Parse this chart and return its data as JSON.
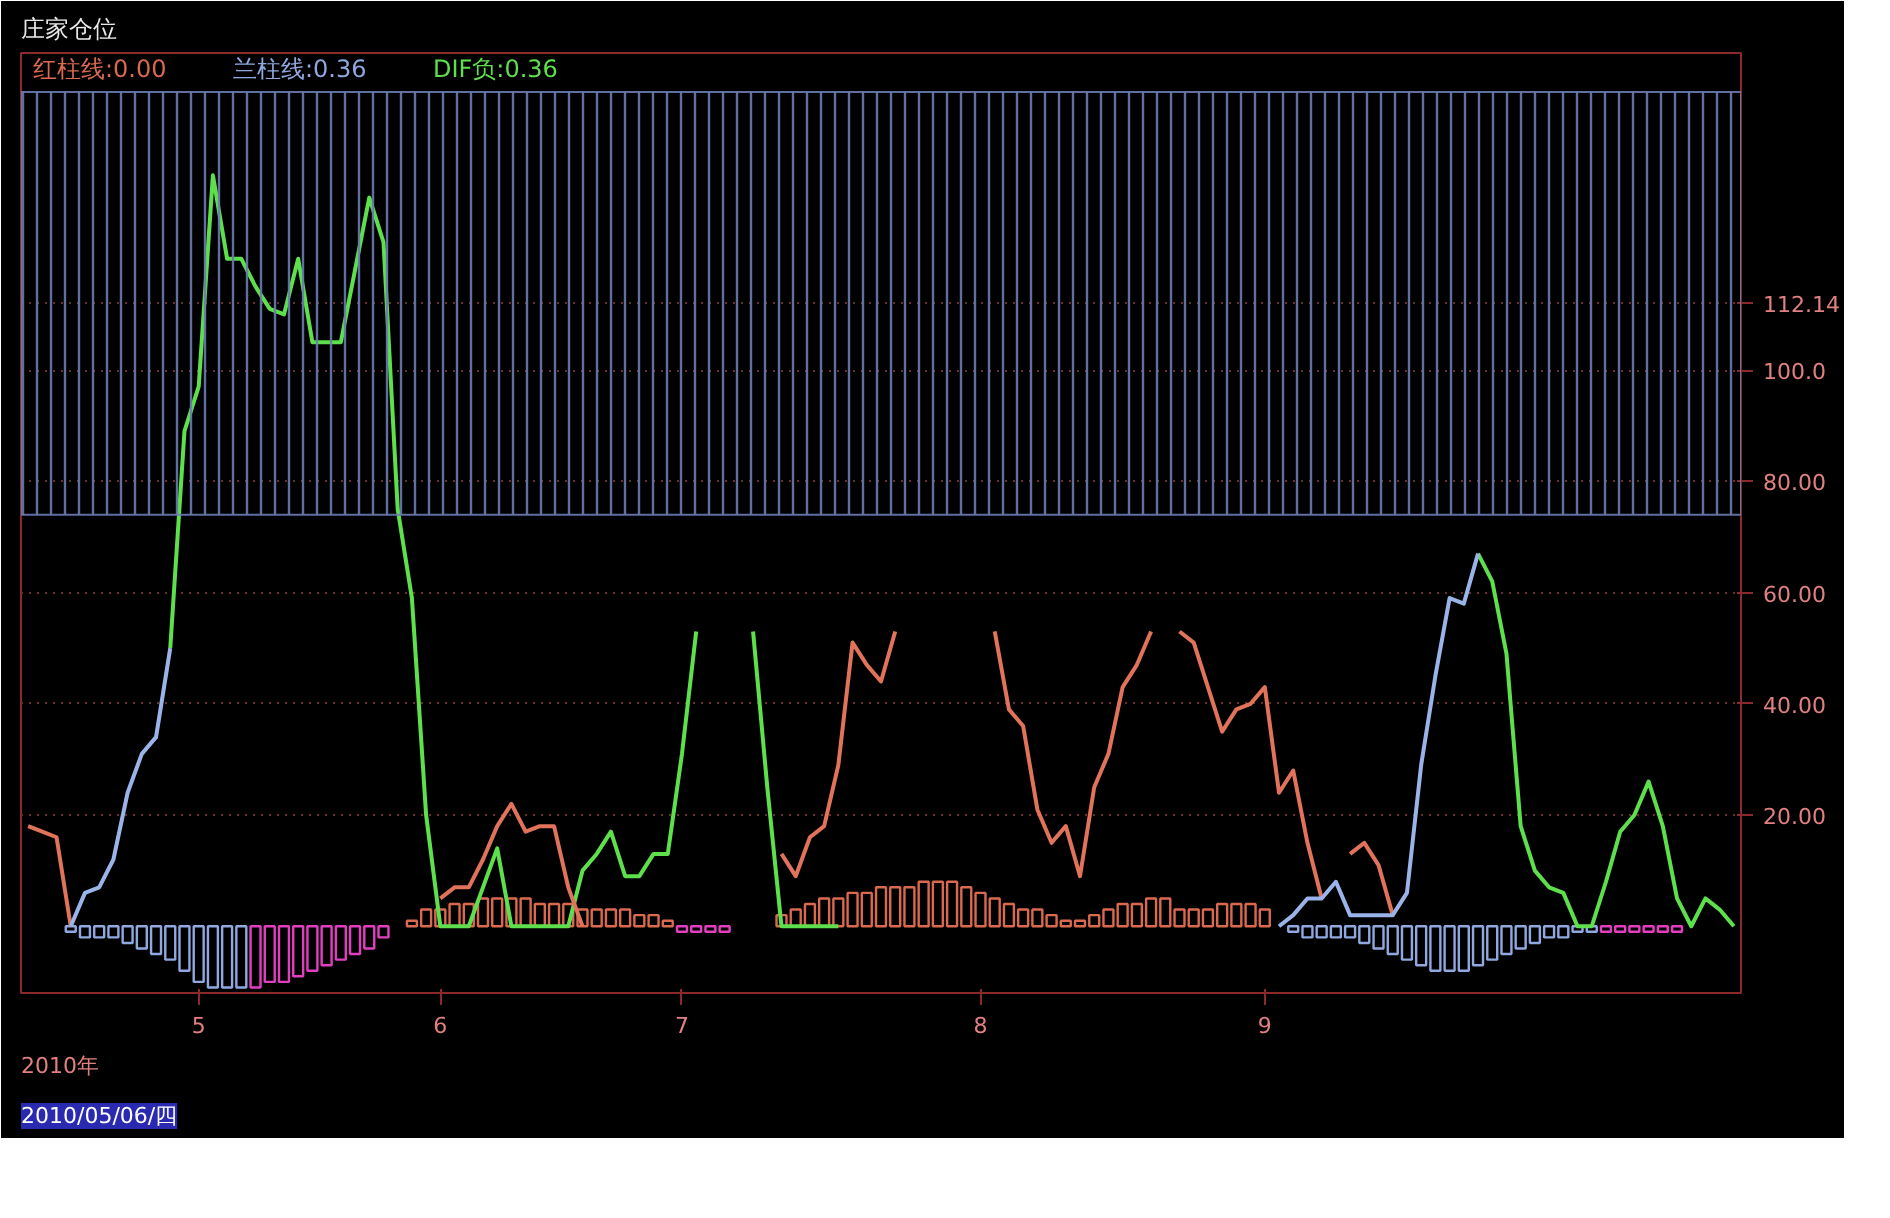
{
  "chart_data": {
    "type": "line",
    "title": "庄家仓位",
    "annotations": [
      "2010年",
      "2010/05/06/四"
    ],
    "categories": [
      null,
      null,
      null,
      null,
      null,
      null,
      null,
      null,
      null,
      null,
      null,
      null,
      "5",
      null,
      null,
      null,
      null,
      null,
      null,
      null,
      null,
      null,
      null,
      null,
      null,
      null,
      null,
      null,
      null,
      "6",
      null,
      null,
      null,
      null,
      null,
      null,
      null,
      null,
      null,
      null,
      null,
      null,
      null,
      null,
      null,
      null,
      "7",
      null,
      null,
      null,
      null,
      null,
      null,
      null,
      null,
      null,
      null,
      null,
      null,
      null,
      null,
      null,
      null,
      null,
      null,
      null,
      null,
      "8",
      null,
      null,
      null,
      null,
      null,
      null,
      null,
      null,
      null,
      null,
      null,
      null,
      null,
      null,
      null,
      null,
      null,
      null,
      null,
      "9",
      null,
      null,
      null,
      null,
      null,
      null,
      null,
      null,
      null,
      null,
      null,
      null,
      null,
      null,
      null,
      null,
      null,
      null,
      null,
      null,
      null,
      null,
      null,
      null,
      null,
      null,
      null,
      null,
      null,
      null,
      null,
      null,
      null
    ],
    "ylim": [
      -12,
      157
    ],
    "yticks": [
      {
        "value": 20,
        "label": "20.00"
      },
      {
        "value": 40,
        "label": "40.00"
      },
      {
        "value": 60,
        "label": "60.00"
      },
      {
        "value": 80,
        "label": "80.00"
      },
      {
        "value": 100,
        "label": "100.0"
      },
      {
        "value": 112.14,
        "label": "112.14"
      }
    ],
    "grid": "y",
    "legend": "top left",
    "bands": [
      {
        "axis": "y",
        "from": 74,
        "to": 150,
        "color": "#6a7bb0"
      }
    ],
    "series": [
      {
        "type": "bar",
        "name": "红柱线:0.00",
        "color": "#d9694f",
        "values": [
          null,
          null,
          null,
          null,
          null,
          null,
          null,
          null,
          null,
          null,
          null,
          null,
          null,
          null,
          null,
          null,
          null,
          null,
          null,
          null,
          null,
          null,
          null,
          null,
          null,
          null,
          null,
          1,
          3,
          3,
          4,
          4,
          5,
          5,
          5,
          5,
          4,
          4,
          4,
          3,
          3,
          3,
          3,
          2,
          2,
          1,
          null,
          null,
          null,
          null,
          null,
          null,
          null,
          2,
          3,
          4,
          5,
          5,
          6,
          6,
          7,
          7,
          7,
          8,
          8,
          8,
          7,
          6,
          5,
          4,
          3,
          3,
          2,
          1,
          1,
          2,
          3,
          4,
          4,
          5,
          5,
          3,
          3,
          3,
          4,
          4,
          4,
          3,
          null,
          null,
          null,
          null,
          null,
          null,
          null,
          null,
          null,
          null,
          null,
          null,
          null,
          null,
          null,
          null,
          null,
          null,
          null,
          null,
          null,
          null,
          null,
          null,
          null,
          null,
          null,
          null,
          null,
          null,
          null,
          null,
          null
        ]
      },
      {
        "type": "bar",
        "name": "兰柱线:0.36",
        "color": "#8fa8e0",
        "values": [
          null,
          null,
          null,
          -1,
          -2,
          -2,
          -2,
          -3,
          -4,
          -5,
          -6,
          -8,
          -10,
          -11,
          -11,
          -11,
          null,
          null,
          null,
          null,
          null,
          null,
          null,
          null,
          null,
          null,
          null,
          null,
          null,
          null,
          null,
          null,
          null,
          null,
          null,
          null,
          null,
          null,
          null,
          null,
          null,
          null,
          null,
          null,
          null,
          null,
          null,
          null,
          null,
          null,
          null,
          null,
          null,
          null,
          null,
          null,
          null,
          null,
          null,
          null,
          null,
          null,
          null,
          null,
          null,
          null,
          null,
          null,
          null,
          null,
          null,
          null,
          null,
          null,
          null,
          null,
          null,
          null,
          null,
          null,
          null,
          null,
          null,
          null,
          null,
          null,
          null,
          null,
          null,
          -1,
          -2,
          -2,
          -2,
          -2,
          -3,
          -4,
          -5,
          -6,
          -7,
          -8,
          -8,
          -8,
          -7,
          -6,
          -5,
          -4,
          -3,
          -2,
          -2,
          -1,
          -1,
          null,
          null,
          null,
          null,
          null,
          null,
          null,
          null,
          null,
          null
        ]
      },
      {
        "type": "bar",
        "color": "#e040c0",
        "values": [
          null,
          null,
          null,
          null,
          null,
          null,
          null,
          null,
          null,
          null,
          null,
          null,
          null,
          null,
          null,
          null,
          -11,
          -10,
          -10,
          -9,
          -8,
          -7,
          -6,
          -5,
          -4,
          -2,
          null,
          null,
          null,
          null,
          null,
          null,
          null,
          null,
          null,
          null,
          null,
          null,
          null,
          null,
          null,
          null,
          null,
          null,
          null,
          null,
          -1,
          -1,
          -1,
          -1,
          null,
          null,
          null,
          null,
          null,
          null,
          null,
          null,
          null,
          null,
          null,
          null,
          null,
          null,
          null,
          null,
          null,
          null,
          null,
          null,
          null,
          null,
          null,
          null,
          null,
          null,
          null,
          null,
          null,
          null,
          null,
          null,
          null,
          null,
          null,
          null,
          null,
          null,
          null,
          null,
          null,
          null,
          null,
          null,
          null,
          null,
          null,
          null,
          null,
          null,
          null,
          null,
          null,
          null,
          null,
          null,
          null,
          null,
          null,
          null,
          null,
          -1,
          -1,
          -1,
          -1,
          -1,
          -1,
          null,
          null,
          null,
          null
        ]
      },
      {
        "name": "DIF负:0.36",
        "color": "#5ee04c",
        "values": [
          null,
          null,
          null,
          null,
          null,
          null,
          null,
          null,
          null,
          null,
          50,
          89,
          97,
          135,
          120,
          120,
          115,
          111,
          110,
          120,
          105,
          105,
          105,
          118,
          131,
          123,
          75,
          59,
          20,
          0,
          0,
          0,
          7,
          14,
          0,
          0,
          0,
          0,
          0,
          10,
          13,
          17,
          9,
          9,
          13,
          13,
          31,
          53,
          null,
          null,
          null,
          53,
          25,
          0,
          0,
          0,
          0,
          0,
          null,
          null,
          null,
          null,
          null,
          null,
          null,
          null,
          null,
          null,
          null,
          null,
          null,
          null,
          null,
          null,
          null,
          null,
          null,
          null,
          null,
          null,
          null,
          null,
          null,
          null,
          null,
          null,
          null,
          null,
          null,
          null,
          null,
          null,
          null,
          null,
          null,
          null,
          null,
          null,
          null,
          null,
          null,
          null,
          67,
          62,
          49,
          18,
          10,
          7,
          6,
          0,
          0,
          8,
          17,
          20,
          26,
          18,
          5,
          0,
          5,
          3,
          0
        ]
      },
      {
        "color": "#e0735a",
        "values": [
          18,
          17,
          16,
          0,
          null,
          null,
          null,
          null,
          null,
          null,
          null,
          null,
          null,
          null,
          null,
          null,
          null,
          null,
          null,
          null,
          null,
          null,
          null,
          null,
          null,
          null,
          null,
          null,
          null,
          5,
          7,
          7,
          12,
          18,
          22,
          17,
          18,
          18,
          7,
          0,
          null,
          null,
          null,
          null,
          null,
          null,
          null,
          null,
          null,
          null,
          null,
          null,
          null,
          13,
          9,
          16,
          18,
          29,
          51,
          47,
          44,
          53,
          null,
          null,
          null,
          null,
          null,
          null,
          53,
          39,
          36,
          21,
          15,
          18,
          9,
          25,
          31,
          43,
          47,
          53,
          null,
          53,
          51,
          43,
          35,
          39,
          40,
          43,
          24,
          28,
          15,
          5,
          null,
          13,
          15,
          11,
          2,
          null,
          null,
          null,
          null,
          null,
          null,
          null,
          null,
          null,
          null,
          null,
          null,
          null,
          null,
          null,
          null,
          null,
          null,
          null,
          null,
          null,
          null,
          null,
          null
        ]
      },
      {
        "color": "#9ab4ea",
        "values": [
          null,
          null,
          null,
          0,
          6,
          7,
          12,
          24,
          31,
          34,
          50,
          null,
          null,
          null,
          null,
          null,
          null,
          null,
          null,
          null,
          null,
          null,
          null,
          null,
          null,
          null,
          null,
          null,
          null,
          null,
          null,
          null,
          null,
          null,
          null,
          null,
          null,
          null,
          null,
          null,
          null,
          null,
          null,
          null,
          null,
          null,
          null,
          null,
          null,
          null,
          null,
          null,
          null,
          null,
          null,
          null,
          null,
          null,
          null,
          null,
          null,
          null,
          null,
          null,
          null,
          null,
          null,
          null,
          null,
          null,
          null,
          null,
          null,
          null,
          null,
          null,
          null,
          null,
          null,
          null,
          null,
          null,
          null,
          null,
          null,
          null,
          null,
          null,
          0,
          2,
          5,
          5,
          8,
          2,
          2,
          2,
          2,
          6,
          29,
          45,
          59,
          58,
          67,
          null,
          null,
          null,
          null,
          null,
          null,
          null,
          null,
          null,
          null,
          null,
          null,
          null,
          null,
          null,
          null,
          null,
          null
        ]
      }
    ]
  }
}
